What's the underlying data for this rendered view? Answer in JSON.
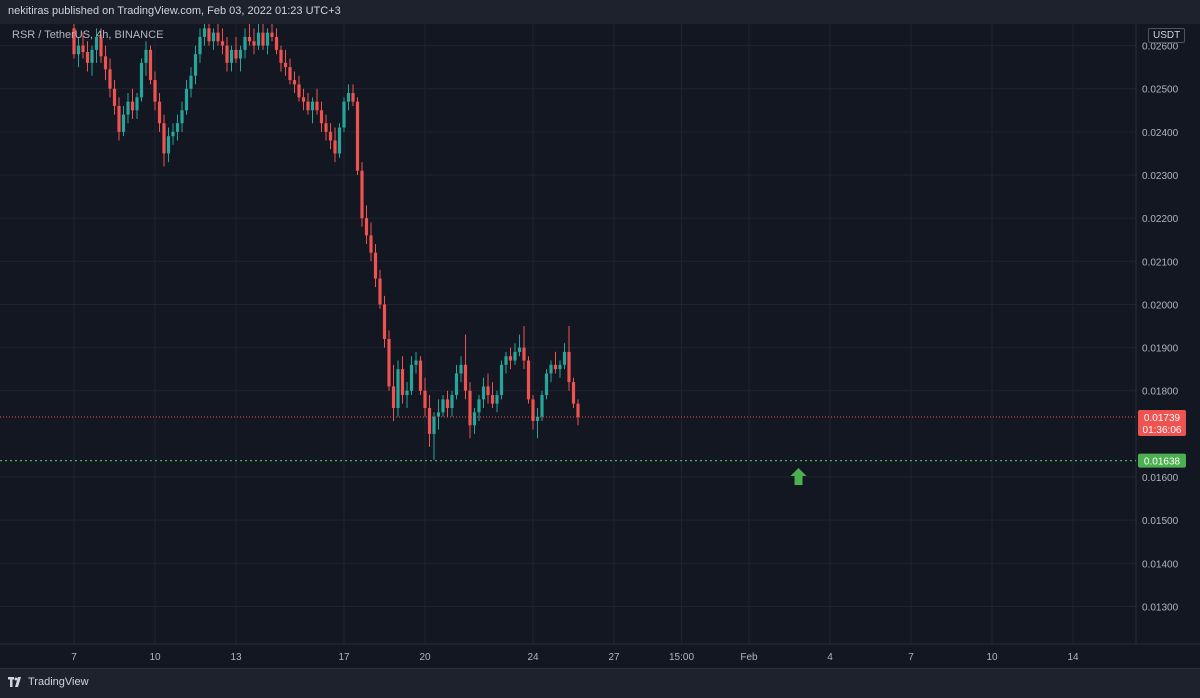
{
  "header": {
    "published_text": "nekitiras published on TradingView.com, Feb 03, 2022 01:23 UTC+3"
  },
  "symbol": {
    "label": "RSR / TetherUS, 4h, BINANCE",
    "currency": "USDT"
  },
  "footer": {
    "brand": "TradingView"
  },
  "colors": {
    "up": "#26a69a",
    "down": "#ef5350",
    "support": "#4caf50",
    "bg": "#131722",
    "grid": "#1f2330"
  },
  "chart_data": {
    "type": "candlestick",
    "title": "RSR / TetherUS, 4h, BINANCE",
    "y_ticks": [
      "0.02600",
      "0.02500",
      "0.02400",
      "0.02300",
      "0.02200",
      "0.02100",
      "0.02000",
      "0.01900",
      "0.01800",
      "0.01600",
      "0.01500",
      "0.01400",
      "0.01300"
    ],
    "y_tick_values": [
      0.026,
      0.025,
      0.024,
      0.023,
      0.022,
      0.021,
      0.02,
      0.019,
      0.018,
      0.016,
      0.015,
      0.014,
      0.013
    ],
    "x_ticks": [
      "7",
      "10",
      "13",
      "17",
      "20",
      "24",
      "27",
      "15:00",
      "Feb",
      "4",
      "7",
      "10",
      "14"
    ],
    "x_tick_index": [
      0,
      18,
      36,
      60,
      78,
      102,
      120,
      135,
      150,
      168,
      186,
      204,
      222
    ],
    "ylim": [
      0.01213,
      0.0265
    ],
    "last_price": {
      "value": "0.01739",
      "countdown": "01:36:06",
      "price": 0.01739
    },
    "support_level": {
      "value": "0.01638",
      "price": 0.01638
    },
    "arrow": {
      "direction": "up",
      "index": 161,
      "price": 0.016
    },
    "candles": [
      [
        0.0264,
        0.0265,
        0.0257,
        0.0258
      ],
      [
        0.0258,
        0.0262,
        0.0255,
        0.026
      ],
      [
        0.026,
        0.0263,
        0.0257,
        0.02585
      ],
      [
        0.02585,
        0.0261,
        0.0254,
        0.0256
      ],
      [
        0.0256,
        0.026,
        0.0253,
        0.0259
      ],
      [
        0.0259,
        0.0264,
        0.0256,
        0.0262
      ],
      [
        0.0262,
        0.0264,
        0.0256,
        0.02575
      ],
      [
        0.02575,
        0.026,
        0.0252,
        0.02545
      ],
      [
        0.02545,
        0.0257,
        0.0248,
        0.025
      ],
      [
        0.025,
        0.0252,
        0.0244,
        0.0246
      ],
      [
        0.0246,
        0.0248,
        0.0238,
        0.024
      ],
      [
        0.024,
        0.0246,
        0.0239,
        0.0244
      ],
      [
        0.0244,
        0.0249,
        0.0242,
        0.0247
      ],
      [
        0.0247,
        0.025,
        0.0243,
        0.0245
      ],
      [
        0.0245,
        0.0249,
        0.0243,
        0.0248
      ],
      [
        0.0248,
        0.0257,
        0.0247,
        0.0256
      ],
      [
        0.0256,
        0.0261,
        0.0253,
        0.0259
      ],
      [
        0.0259,
        0.026,
        0.0251,
        0.0252
      ],
      [
        0.0252,
        0.0254,
        0.0245,
        0.0247
      ],
      [
        0.0247,
        0.0249,
        0.024,
        0.0242
      ],
      [
        0.0242,
        0.0244,
        0.0232,
        0.0235
      ],
      [
        0.0235,
        0.0241,
        0.0233,
        0.0239
      ],
      [
        0.0239,
        0.0242,
        0.0237,
        0.024
      ],
      [
        0.024,
        0.0244,
        0.0238,
        0.0242
      ],
      [
        0.0242,
        0.0247,
        0.024,
        0.0245
      ],
      [
        0.0245,
        0.0252,
        0.0244,
        0.025
      ],
      [
        0.025,
        0.0255,
        0.0248,
        0.0253
      ],
      [
        0.0253,
        0.026,
        0.0251,
        0.0258
      ],
      [
        0.0258,
        0.0264,
        0.0256,
        0.0262
      ],
      [
        0.0262,
        0.0265,
        0.026,
        0.0264
      ],
      [
        0.0264,
        0.0265,
        0.026,
        0.0261
      ],
      [
        0.0261,
        0.0264,
        0.0259,
        0.0263
      ],
      [
        0.0263,
        0.0265,
        0.026,
        0.0261
      ],
      [
        0.0261,
        0.0264,
        0.0258,
        0.026
      ],
      [
        0.026,
        0.0262,
        0.0254,
        0.0256
      ],
      [
        0.0256,
        0.026,
        0.0254,
        0.0259
      ],
      [
        0.0259,
        0.0262,
        0.0256,
        0.0257
      ],
      [
        0.0257,
        0.026,
        0.0254,
        0.0259
      ],
      [
        0.0259,
        0.0264,
        0.0257,
        0.0262
      ],
      [
        0.0262,
        0.0265,
        0.026,
        0.0261
      ],
      [
        0.0261,
        0.0264,
        0.0258,
        0.026
      ],
      [
        0.026,
        0.0265,
        0.0259,
        0.0263
      ],
      [
        0.0263,
        0.0265,
        0.0259,
        0.026
      ],
      [
        0.026,
        0.0264,
        0.0258,
        0.0263
      ],
      [
        0.0263,
        0.0265,
        0.0261,
        0.0262
      ],
      [
        0.0262,
        0.0264,
        0.0258,
        0.0259
      ],
      [
        0.0259,
        0.026,
        0.0254,
        0.0256
      ],
      [
        0.0256,
        0.0259,
        0.0253,
        0.0255
      ],
      [
        0.0255,
        0.0257,
        0.0251,
        0.0252
      ],
      [
        0.0252,
        0.0254,
        0.0249,
        0.0251
      ],
      [
        0.0251,
        0.0253,
        0.0247,
        0.0248
      ],
      [
        0.0248,
        0.025,
        0.0245,
        0.0247
      ],
      [
        0.0247,
        0.0249,
        0.0244,
        0.0245
      ],
      [
        0.0245,
        0.0248,
        0.0242,
        0.0247
      ],
      [
        0.0247,
        0.025,
        0.0244,
        0.0245
      ],
      [
        0.0245,
        0.0247,
        0.024,
        0.0242
      ],
      [
        0.0242,
        0.0244,
        0.0238,
        0.024
      ],
      [
        0.024,
        0.0242,
        0.0236,
        0.0238
      ],
      [
        0.0238,
        0.0241,
        0.0233,
        0.0235
      ],
      [
        0.0235,
        0.0242,
        0.0234,
        0.0241
      ],
      [
        0.0241,
        0.0248,
        0.024,
        0.0247
      ],
      [
        0.0247,
        0.0251,
        0.0245,
        0.0249
      ],
      [
        0.0249,
        0.0251,
        0.0246,
        0.0247
      ],
      [
        0.0247,
        0.0248,
        0.023,
        0.0231
      ],
      [
        0.0231,
        0.0233,
        0.0218,
        0.022
      ],
      [
        0.022,
        0.0223,
        0.0214,
        0.0216
      ],
      [
        0.0216,
        0.0219,
        0.021,
        0.0212
      ],
      [
        0.0212,
        0.0214,
        0.0204,
        0.0206
      ],
      [
        0.0206,
        0.0208,
        0.0199,
        0.02
      ],
      [
        0.02,
        0.0202,
        0.019,
        0.0192
      ],
      [
        0.0192,
        0.0194,
        0.018,
        0.0181
      ],
      [
        0.0181,
        0.0186,
        0.0173,
        0.0176
      ],
      [
        0.0176,
        0.0187,
        0.0174,
        0.0185
      ],
      [
        0.0185,
        0.0188,
        0.0177,
        0.0179
      ],
      [
        0.0179,
        0.0182,
        0.0176,
        0.018
      ],
      [
        0.018,
        0.0188,
        0.0179,
        0.0186
      ],
      [
        0.0186,
        0.0189,
        0.0184,
        0.0187
      ],
      [
        0.0187,
        0.0188,
        0.0179,
        0.018
      ],
      [
        0.018,
        0.0183,
        0.0174,
        0.0176
      ],
      [
        0.0176,
        0.0179,
        0.0167,
        0.017
      ],
      [
        0.017,
        0.0175,
        0.0164,
        0.0174
      ],
      [
        0.0174,
        0.0178,
        0.0171,
        0.0175
      ],
      [
        0.0175,
        0.0179,
        0.0174,
        0.0178
      ],
      [
        0.0178,
        0.018,
        0.0174,
        0.0176
      ],
      [
        0.0176,
        0.018,
        0.0174,
        0.0179
      ],
      [
        0.0179,
        0.0186,
        0.0178,
        0.0184
      ],
      [
        0.0184,
        0.0188,
        0.0182,
        0.0186
      ],
      [
        0.0186,
        0.0193,
        0.0178,
        0.018
      ],
      [
        0.018,
        0.0182,
        0.0169,
        0.0172
      ],
      [
        0.0172,
        0.0176,
        0.017,
        0.0175
      ],
      [
        0.0175,
        0.0179,
        0.0173,
        0.0178
      ],
      [
        0.0178,
        0.0183,
        0.0176,
        0.0181
      ],
      [
        0.0181,
        0.0184,
        0.0177,
        0.0179
      ],
      [
        0.0179,
        0.0182,
        0.0176,
        0.0177
      ],
      [
        0.0177,
        0.018,
        0.0175,
        0.0179
      ],
      [
        0.0179,
        0.0187,
        0.0178,
        0.0186
      ],
      [
        0.0186,
        0.0189,
        0.0184,
        0.0188
      ],
      [
        0.0188,
        0.019,
        0.0185,
        0.0187
      ],
      [
        0.0187,
        0.0191,
        0.0186,
        0.0189
      ],
      [
        0.0189,
        0.0193,
        0.0188,
        0.019
      ],
      [
        0.019,
        0.0195,
        0.0185,
        0.0187
      ],
      [
        0.0187,
        0.0188,
        0.0177,
        0.0178
      ],
      [
        0.0178,
        0.0179,
        0.0171,
        0.0173
      ],
      [
        0.0173,
        0.0176,
        0.0169,
        0.0174
      ],
      [
        0.0174,
        0.018,
        0.0173,
        0.0179
      ],
      [
        0.0179,
        0.0185,
        0.0178,
        0.0184
      ],
      [
        0.0184,
        0.0187,
        0.0182,
        0.0186
      ],
      [
        0.0186,
        0.0189,
        0.0184,
        0.0185
      ],
      [
        0.0185,
        0.0187,
        0.0183,
        0.0186
      ],
      [
        0.0186,
        0.0191,
        0.0185,
        0.0189
      ],
      [
        0.0189,
        0.0195,
        0.018,
        0.0182
      ],
      [
        0.0182,
        0.0183,
        0.0176,
        0.0177
      ],
      [
        0.0177,
        0.0178,
        0.0172,
        0.01739
      ]
    ]
  }
}
